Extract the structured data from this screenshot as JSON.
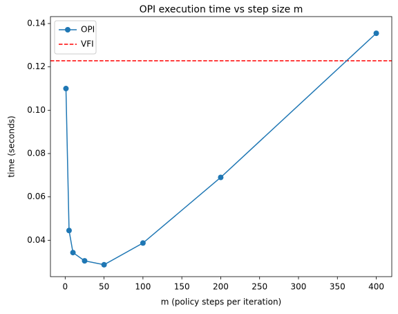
{
  "chart_data": {
    "type": "line",
    "title": "OPI execution time vs step size m",
    "x_label": "m (policy steps per iteration)",
    "y_label": "time (seconds)",
    "x": [
      1,
      5,
      10,
      25,
      50,
      100,
      200,
      400
    ],
    "series": [
      {
        "name": "OPI",
        "color": "#1f77b4",
        "values": [
          0.11,
          0.0445,
          0.0343,
          0.0305,
          0.0287,
          0.0387,
          0.069,
          0.1355
        ]
      }
    ],
    "hlines": [
      {
        "name": "VFI",
        "color": "#ff0000",
        "value": 0.1228,
        "style": "dashed"
      }
    ],
    "xlim": [
      -18.95,
      419.95
    ],
    "ylim": [
      0.0232,
      0.1432
    ],
    "xticks": [
      0,
      50,
      100,
      150,
      200,
      250,
      300,
      350,
      400
    ],
    "yticks": [
      0.04,
      0.06,
      0.08,
      {
        "value": 0.1,
        "label": "0.10"
      },
      0.12,
      0.14
    ],
    "grid": false,
    "legend": "upper left"
  }
}
